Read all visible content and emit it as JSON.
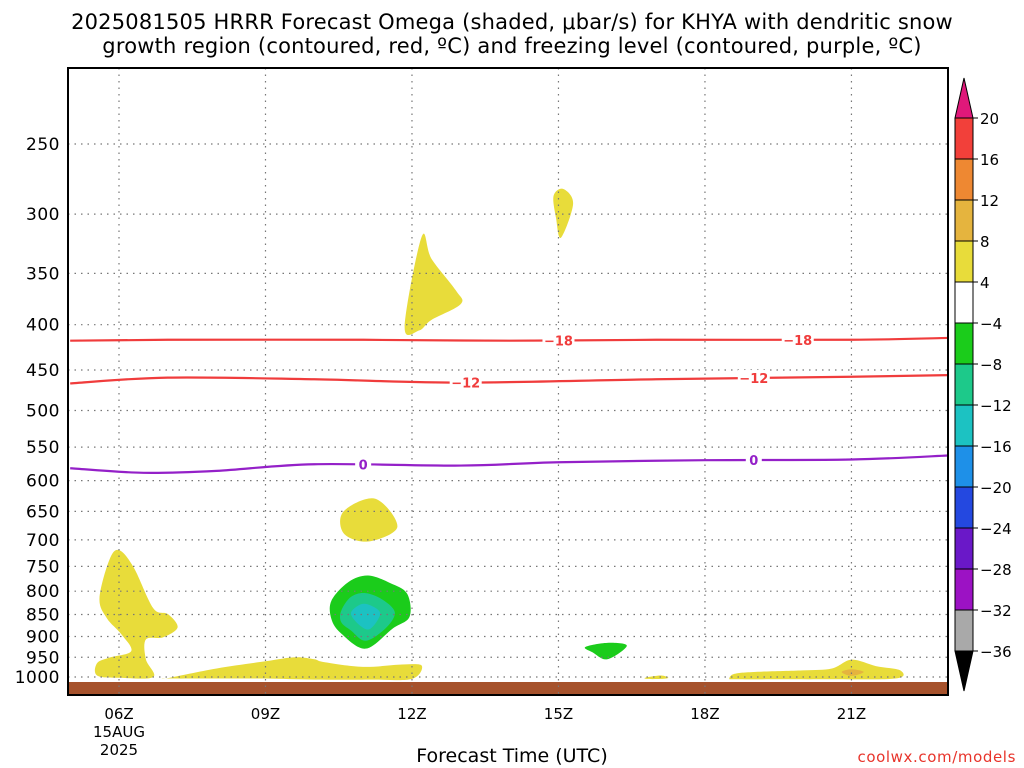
{
  "title": {
    "line1": "2025081505 HRRR Forecast Omega (shaded, μbar/s) for KHYA with dendritic snow",
    "line2": "growth region (contoured, red, ºC) and freezing level (contoured, purple, ºC)"
  },
  "credit": "coolwx.com/models",
  "chart_data": {
    "type": "time-height contour",
    "xlabel": "Forecast Time (UTC)",
    "ylabel": "",
    "x_ticks": [
      {
        "hour": 6,
        "label": "06Z",
        "sub": [
          "15AUG",
          "2025"
        ]
      },
      {
        "hour": 9,
        "label": "09Z",
        "sub": []
      },
      {
        "hour": 12,
        "label": "12Z",
        "sub": []
      },
      {
        "hour": 15,
        "label": "15Z",
        "sub": []
      },
      {
        "hour": 18,
        "label": "18Z",
        "sub": []
      },
      {
        "hour": 21,
        "label": "21Z",
        "sub": []
      }
    ],
    "xlim_hours": [
      5,
      23
    ],
    "y_axis": "pressure (hPa, log scale, inverted)",
    "ylim_hpa": [
      1010,
      200
    ],
    "y_ticks": [
      250,
      300,
      350,
      400,
      450,
      500,
      550,
      600,
      650,
      700,
      750,
      800,
      850,
      900,
      950,
      1000
    ],
    "grid": true,
    "colorbar": {
      "ticks": [
        "20",
        "16",
        "12",
        "8",
        "4",
        "−4",
        "−8",
        "−12",
        "−16",
        "−20",
        "−24",
        "−28",
        "−32",
        "−36"
      ],
      "bins": [
        {
          "range": [
            16,
            20
          ],
          "color": "#f2403a"
        },
        {
          "range": [
            12,
            16
          ],
          "color": "#ee8832"
        },
        {
          "range": [
            8,
            12
          ],
          "color": "#e5b43e"
        },
        {
          "range": [
            4,
            8
          ],
          "color": "#e8dc3a"
        },
        {
          "range": [
            -4,
            4
          ],
          "color": "#ffffff"
        },
        {
          "range": [
            -8,
            -4
          ],
          "color": "#1bcc1b"
        },
        {
          "range": [
            -12,
            -8
          ],
          "color": "#1dc98a"
        },
        {
          "range": [
            -16,
            -12
          ],
          "color": "#1cc2c2"
        },
        {
          "range": [
            -20,
            -16
          ],
          "color": "#1e90e8"
        },
        {
          "range": [
            -24,
            -20
          ],
          "color": "#2448e0"
        },
        {
          "range": [
            -28,
            -24
          ],
          "color": "#6a18c8"
        },
        {
          "range": [
            -32,
            -28
          ],
          "color": "#9c12c4"
        },
        {
          "range": [
            -36,
            -32
          ],
          "color": "#a9a9a9"
        }
      ],
      "over_color": "#e0187a",
      "under_color": "#000000"
    },
    "isotherms": [
      {
        "label": "−18",
        "color": "#f03c3c",
        "points": [
          [
            5,
            417
          ],
          [
            7,
            416
          ],
          [
            11,
            416
          ],
          [
            14,
            417
          ],
          [
            17,
            416
          ],
          [
            21,
            416
          ],
          [
            23,
            414
          ]
        ],
        "label_hours": [
          15,
          19.9
        ]
      },
      {
        "label": "−12",
        "color": "#f03c3c",
        "points": [
          [
            5,
            466
          ],
          [
            7,
            459
          ],
          [
            10,
            461
          ],
          [
            13,
            465
          ],
          [
            17,
            461
          ],
          [
            21,
            458
          ],
          [
            23,
            456
          ]
        ],
        "label_hours": [
          13.1,
          19
        ]
      },
      {
        "label": "0",
        "color": "#9420c8",
        "points": [
          [
            5,
            581
          ],
          [
            6.5,
            588
          ],
          [
            8,
            585
          ],
          [
            10,
            575
          ],
          [
            13,
            577
          ],
          [
            15,
            572
          ],
          [
            18,
            569
          ],
          [
            21,
            568
          ],
          [
            23,
            562
          ]
        ],
        "label_hours": [
          11,
          19
        ]
      }
    ],
    "omega_regions": [
      {
        "name": "omega-region-upper-1",
        "color": "#e8dc3a",
        "points": [
          [
            11.85,
            402
          ],
          [
            12.2,
            318
          ],
          [
            12.4,
            337
          ],
          [
            12.9,
            366
          ],
          [
            13.0,
            379
          ],
          [
            12.4,
            395
          ],
          [
            12.15,
            406
          ]
        ]
      },
      {
        "name": "omega-region-upper-2",
        "color": "#e8dc3a",
        "points": [
          [
            14.9,
            286
          ],
          [
            15.1,
            281
          ],
          [
            15.3,
            292
          ],
          [
            15.05,
            319
          ],
          [
            14.95,
            303
          ]
        ]
      },
      {
        "name": "omega-region-mid",
        "color": "#e8dc3a",
        "points": [
          [
            10.6,
            650
          ],
          [
            11.25,
            629
          ],
          [
            11.7,
            677
          ],
          [
            11.1,
            703
          ],
          [
            10.6,
            688
          ]
        ]
      },
      {
        "name": "omega-region-lower-left",
        "color": "#e8dc3a",
        "points": [
          [
            5.6,
            815
          ],
          [
            5.8,
            738
          ],
          [
            6.0,
            719
          ],
          [
            6.3,
            752
          ],
          [
            6.7,
            836
          ],
          [
            7.0,
            849
          ],
          [
            7.2,
            879
          ],
          [
            6.9,
            902
          ],
          [
            6.55,
            907
          ],
          [
            6.55,
            955
          ],
          [
            6.7,
            1000
          ],
          [
            6.0,
            1002
          ],
          [
            5.55,
            996
          ],
          [
            5.55,
            965
          ],
          [
            5.8,
            951
          ],
          [
            6.25,
            935
          ],
          [
            6.05,
            895
          ],
          [
            5.75,
            858
          ]
        ]
      },
      {
        "name": "omega-region-surface-1",
        "color": "#e8dc3a",
        "points": [
          [
            7.0,
            1003
          ],
          [
            8.0,
            978
          ],
          [
            9.0,
            960
          ],
          [
            9.6,
            950
          ],
          [
            10.0,
            955
          ],
          [
            10.2,
            962
          ],
          [
            11.0,
            974
          ],
          [
            11.8,
            968
          ],
          [
            12.2,
            971
          ],
          [
            12.0,
            1005
          ],
          [
            11.2,
            1007
          ],
          [
            10.0,
            1007
          ],
          [
            9.0,
            1004
          ],
          [
            8.0,
            1004
          ],
          [
            7.0,
            1004
          ]
        ]
      },
      {
        "name": "omega-region-surface-2",
        "color": "#e8dc3a",
        "points": [
          [
            16.8,
            1001
          ],
          [
            17.1,
            996
          ],
          [
            17.25,
            1002
          ],
          [
            17.1,
            1005
          ],
          [
            16.8,
            1005
          ]
        ]
      },
      {
        "name": "omega-region-surface-3",
        "color": "#e8dc3a",
        "points": [
          [
            18.5,
            1004
          ],
          [
            18.6,
            992
          ],
          [
            19.0,
            987
          ],
          [
            20.0,
            983
          ],
          [
            20.6,
            978
          ],
          [
            21.0,
            956
          ],
          [
            21.5,
            972
          ],
          [
            22.0,
            983
          ],
          [
            21.9,
            1004
          ],
          [
            20.5,
            1006
          ],
          [
            19.5,
            1006
          ],
          [
            18.6,
            1006
          ]
        ]
      },
      {
        "name": "omega-region-surface-3-core",
        "color": "#e5b43e",
        "points": [
          [
            20.8,
            987
          ],
          [
            21.0,
            980
          ],
          [
            21.25,
            987
          ],
          [
            21.0,
            997
          ]
        ]
      },
      {
        "name": "omega-region-sink-outer",
        "color": "#1bcc1b",
        "points": [
          [
            10.35,
            820
          ],
          [
            10.7,
            781
          ],
          [
            11.1,
            768
          ],
          [
            11.55,
            783
          ],
          [
            11.9,
            805
          ],
          [
            11.95,
            855
          ],
          [
            11.6,
            882
          ],
          [
            11.05,
            929
          ],
          [
            10.55,
            893
          ],
          [
            10.35,
            860
          ]
        ]
      },
      {
        "name": "omega-region-sink-mid",
        "color": "#1dc98a",
        "points": [
          [
            10.55,
            842
          ],
          [
            10.75,
            812
          ],
          [
            11.05,
            804
          ],
          [
            11.4,
            818
          ],
          [
            11.65,
            846
          ],
          [
            11.45,
            882
          ],
          [
            11.05,
            910
          ],
          [
            10.75,
            886
          ],
          [
            10.55,
            867
          ]
        ]
      },
      {
        "name": "omega-region-sink-core",
        "color": "#1cc2c2",
        "points": [
          [
            10.75,
            848
          ],
          [
            10.95,
            828
          ],
          [
            11.15,
            830
          ],
          [
            11.35,
            848
          ],
          [
            11.15,
            882
          ],
          [
            10.95,
            876
          ]
        ]
      },
      {
        "name": "omega-region-sink-small",
        "color": "#1bcc1b",
        "points": [
          [
            15.55,
            925
          ],
          [
            16.0,
            915
          ],
          [
            16.4,
            922
          ],
          [
            16.0,
            955
          ],
          [
            15.7,
            938
          ]
        ]
      }
    ],
    "surface_band_color": "#a6522c"
  }
}
